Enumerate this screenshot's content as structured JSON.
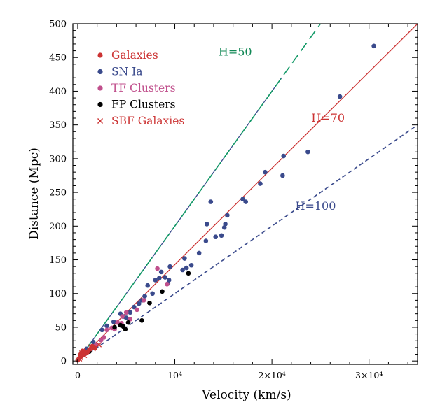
{
  "chart_data": {
    "type": "scatter",
    "xlabel": "Velocity (km/s)",
    "ylabel": "Distance (Mpc)",
    "xlim": [
      -500,
      35000
    ],
    "ylim": [
      -5,
      500
    ],
    "xticks": [
      {
        "value": 0,
        "label": "0"
      },
      {
        "value": 10000,
        "label": "10⁴"
      },
      {
        "value": 20000,
        "label": "2×10⁴"
      },
      {
        "value": 30000,
        "label": "3×10⁴"
      }
    ],
    "yticks": [
      0,
      50,
      100,
      150,
      200,
      250,
      300,
      350,
      400,
      450,
      500
    ],
    "x_minor_step": 2000,
    "y_minor_step": 10,
    "grid": false,
    "legend_position": "top-left",
    "legend": [
      {
        "label": "Galaxies",
        "color": "#cc3333",
        "marker": "dot"
      },
      {
        "label": "SN Ia",
        "color": "#3a4a8c",
        "marker": "dot"
      },
      {
        "label": "TF Clusters",
        "color": "#c04f8c",
        "marker": "dot"
      },
      {
        "label": "FP Clusters",
        "color": "#000000",
        "marker": "dot"
      },
      {
        "label": "SBF Galaxies",
        "color": "#cc3333",
        "marker": "cross"
      }
    ],
    "lines": [
      {
        "label": "H=50",
        "slope": 0.02,
        "color": "#3a4a8c",
        "style": "solid",
        "x_end": 21000,
        "label_color": "#118855"
      },
      {
        "label": "",
        "slope": 0.02,
        "color": "#119966",
        "style": "dashed",
        "x_end": 25000
      },
      {
        "label": "H=70",
        "slope": 0.014286,
        "color": "#cc3333",
        "style": "solid",
        "x_end": 35000,
        "label_color": "#cc3333"
      },
      {
        "label": "H=100",
        "slope": 0.01,
        "color": "#3a4a8c",
        "style": "dashed",
        "x_end": 35000,
        "label_color": "#3a4a8c"
      }
    ],
    "series": [
      {
        "name": "SN Ia",
        "color": "#3a4a8c",
        "marker": "dot",
        "points": [
          [
            30500,
            467
          ],
          [
            27000,
            392
          ],
          [
            23700,
            310
          ],
          [
            21200,
            304
          ],
          [
            21100,
            275
          ],
          [
            19300,
            280
          ],
          [
            18800,
            263
          ],
          [
            17300,
            236
          ],
          [
            17000,
            240
          ],
          [
            15400,
            216
          ],
          [
            15200,
            203
          ],
          [
            15100,
            198
          ],
          [
            14800,
            186
          ],
          [
            14200,
            184
          ],
          [
            13700,
            236
          ],
          [
            13300,
            203
          ],
          [
            13200,
            178
          ],
          [
            12500,
            160
          ],
          [
            11700,
            142
          ],
          [
            11200,
            138
          ],
          [
            11000,
            152
          ],
          [
            10800,
            135
          ],
          [
            9500,
            140
          ],
          [
            9400,
            120
          ],
          [
            9300,
            115
          ],
          [
            9000,
            124
          ],
          [
            8600,
            132
          ],
          [
            8400,
            123
          ],
          [
            8000,
            120
          ],
          [
            7700,
            100
          ],
          [
            7200,
            112
          ],
          [
            6900,
            96
          ],
          [
            6600,
            90
          ],
          [
            6300,
            85
          ],
          [
            5800,
            80
          ],
          [
            5400,
            72
          ],
          [
            5000,
            64
          ],
          [
            4700,
            66
          ],
          [
            4400,
            70
          ],
          [
            3700,
            58
          ],
          [
            3000,
            52
          ],
          [
            2500,
            46
          ],
          [
            1600,
            28
          ],
          [
            900,
            18
          ]
        ]
      },
      {
        "name": "TF Clusters",
        "color": "#c04f8c",
        "marker": "dot",
        "points": [
          [
            9200,
            114
          ],
          [
            8200,
            137
          ],
          [
            6800,
            90
          ],
          [
            6100,
            76
          ],
          [
            5400,
            62
          ],
          [
            5000,
            72
          ],
          [
            4600,
            66
          ],
          [
            4500,
            56
          ],
          [
            4100,
            57
          ],
          [
            3800,
            47
          ],
          [
            3500,
            49
          ],
          [
            3000,
            46
          ],
          [
            2700,
            35
          ],
          [
            2400,
            31
          ],
          [
            1900,
            24
          ],
          [
            1400,
            20
          ],
          [
            1100,
            14
          ],
          [
            700,
            12
          ]
        ]
      },
      {
        "name": "FP Clusters",
        "color": "#000000",
        "marker": "dot",
        "points": [
          [
            11400,
            130
          ],
          [
            8700,
            103
          ],
          [
            7400,
            86
          ],
          [
            6600,
            60
          ],
          [
            5200,
            57
          ],
          [
            4900,
            47
          ],
          [
            4700,
            51
          ],
          [
            4400,
            53
          ],
          [
            3800,
            50
          ],
          [
            1200,
            14
          ]
        ]
      },
      {
        "name": "Galaxies",
        "color": "#cc3333",
        "marker": "dot",
        "points": [
          [
            1800,
            19
          ],
          [
            1500,
            22
          ],
          [
            1200,
            17
          ],
          [
            1000,
            13
          ],
          [
            800,
            11
          ],
          [
            600,
            9
          ],
          [
            500,
            15
          ],
          [
            400,
            7
          ],
          [
            300,
            10
          ],
          [
            200,
            4
          ],
          [
            100,
            3
          ],
          [
            0,
            1
          ]
        ]
      },
      {
        "name": "SBF Galaxies",
        "color": "#cc3333",
        "marker": "cross",
        "points": [
          [
            2200,
            24
          ],
          [
            1600,
            18
          ],
          [
            1300,
            21
          ],
          [
            900,
            15
          ],
          [
            700,
            8
          ],
          [
            400,
            12
          ],
          [
            300,
            5
          ],
          [
            200,
            3
          ]
        ]
      }
    ]
  }
}
